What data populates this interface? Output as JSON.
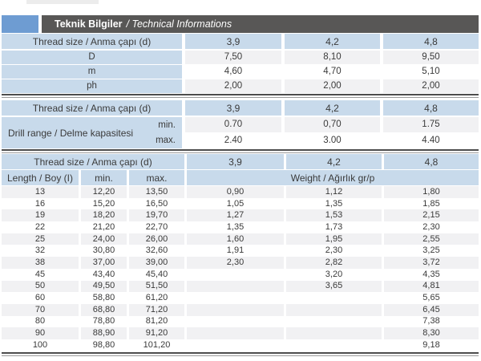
{
  "title_bar": {
    "title_tr": "Teknik Bilgiler",
    "title_en": "/ Technical Informations"
  },
  "colors": {
    "accent_blue": "#6e9cd2",
    "bar_gray": "#585756",
    "header_blue": "#c8daeb",
    "row_shade": "#f1f1f3",
    "row_plain": "#ffffff",
    "border_dark": "#4d4d4d"
  },
  "specs_table": {
    "header": {
      "label": "Thread size / Anma çapı (d)",
      "sizes": [
        "3,9",
        "4,2",
        "4,8"
      ]
    },
    "rows": [
      {
        "label": "D",
        "values": [
          "7,50",
          "8,10",
          "9,50"
        ]
      },
      {
        "label": "m",
        "values": [
          "4,60",
          "4,70",
          "5,10"
        ]
      },
      {
        "label": "ph",
        "values": [
          "2,00",
          "2,00",
          "2,00"
        ]
      }
    ]
  },
  "drill_table": {
    "header": {
      "label": "Thread size / Anma çapı (d)",
      "sizes": [
        "3,9",
        "4,2",
        "4,8"
      ]
    },
    "row_label": "Drill range / Delme kapasitesi",
    "min_label": "min.",
    "max_label": "max.",
    "min_values": [
      "0.70",
      "0,70",
      "1.75"
    ],
    "max_values": [
      "2.40",
      "3.00",
      "4.40"
    ]
  },
  "length_table": {
    "header": {
      "label": "Thread size / Anma çapı (d)",
      "sizes": [
        "3,9",
        "4,2",
        "4,8"
      ]
    },
    "subheader": {
      "length": "Length / Boy (I)",
      "min": "min.",
      "max": "max.",
      "weight": "Weight / Ağırlık gr/p"
    },
    "rows": [
      [
        "13",
        "12,20",
        "13,50",
        "0,90",
        "1,12",
        "1,80"
      ],
      [
        "16",
        "15,20",
        "16,50",
        "1,05",
        "1,35",
        "1,85"
      ],
      [
        "19",
        "18,20",
        "19,70",
        "1,27",
        "1,53",
        "2,15"
      ],
      [
        "22",
        "21,20",
        "22,70",
        "1,35",
        "1,73",
        "2,30"
      ],
      [
        "25",
        "24,00",
        "26,00",
        "1,60",
        "1,95",
        "2,55"
      ],
      [
        "32",
        "30,80",
        "32,60",
        "1,91",
        "2,30",
        "3,25"
      ],
      [
        "38",
        "37,00",
        "39,00",
        "2,30",
        "2,82",
        "3,72"
      ],
      [
        "45",
        "43,40",
        "45,40",
        "",
        "3,20",
        "4,35"
      ],
      [
        "50",
        "49,50",
        "51,50",
        "",
        "3,65",
        "4,81"
      ],
      [
        "60",
        "58,80",
        "61,20",
        "",
        "",
        "5,65"
      ],
      [
        "70",
        "68,80",
        "71,20",
        "",
        "",
        "6,45"
      ],
      [
        "80",
        "78,80",
        "81,20",
        "",
        "",
        "7,38"
      ],
      [
        "90",
        "88,90",
        "91,20",
        "",
        "",
        "8,30"
      ],
      [
        "100",
        "98,80",
        "101,20",
        "",
        "",
        "9,18"
      ]
    ]
  }
}
